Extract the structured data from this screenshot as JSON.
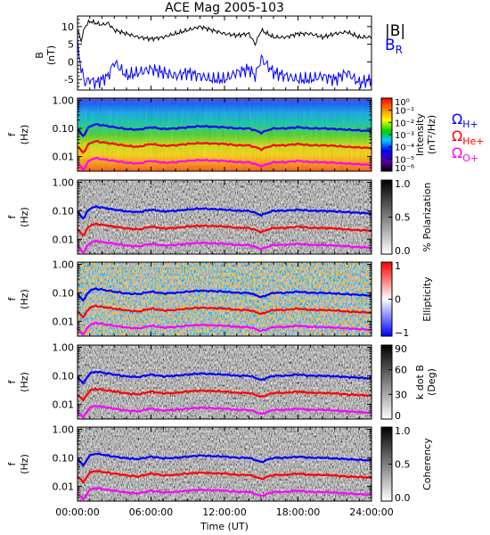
{
  "chart_data": {
    "type": "heatmap",
    "title": "ACE Mag 2005-103",
    "xlabel": "Time (UT)",
    "x_ticks": [
      "00:00:00",
      "06:00:00",
      "12:00:00",
      "18:00:00",
      "24:00:00"
    ],
    "x_range_hours": [
      0,
      24
    ],
    "line_panel": {
      "type": "line",
      "ylabel": "B",
      "yunit": "(nT)",
      "y_ticks": [
        "10",
        "5",
        "0",
        "-5"
      ],
      "ylim": [
        -8,
        13
      ],
      "legend": [
        {
          "name": "|B|",
          "sub": "",
          "color": "#000000"
        },
        {
          "name": "B",
          "sub": "R",
          "color": "#0000ff"
        }
      ],
      "series": [
        {
          "name": "|B|",
          "color": "#000000",
          "x": [
            0,
            0.3,
            0.6,
            1,
            1.5,
            2,
            2.5,
            3,
            4,
            5,
            6,
            7,
            8,
            9,
            10,
            11,
            12,
            13,
            14,
            14.5,
            15,
            16,
            17,
            18,
            19,
            20,
            21,
            22,
            23,
            24
          ],
          "values": [
            9,
            6,
            10,
            11.5,
            11,
            10.5,
            11,
            9,
            8,
            7,
            6.5,
            7,
            8,
            9,
            10,
            9,
            8,
            7.5,
            8,
            5,
            9,
            7,
            7,
            8,
            8,
            7,
            8,
            8.5,
            7,
            7
          ]
        },
        {
          "name": "B_R",
          "color": "#0000ff",
          "x": [
            0,
            0.3,
            0.6,
            1,
            1.5,
            2,
            2.5,
            3,
            4,
            5,
            6,
            7,
            8,
            9,
            10,
            11,
            12,
            13,
            14,
            14.5,
            15,
            16,
            17,
            18,
            19,
            20,
            21,
            22,
            23,
            24
          ],
          "values": [
            5,
            -2,
            -6,
            -5,
            -6,
            -5,
            -4,
            0,
            -4,
            -3,
            -2,
            -3,
            -4,
            -3,
            -4,
            -5,
            -5,
            -3,
            -2,
            -4,
            1,
            -3,
            -4,
            -5,
            -5,
            -4,
            -5,
            -3,
            -6,
            -5
          ]
        }
      ]
    },
    "freq_axis": {
      "ylabel": "f",
      "yunit": "(Hz)",
      "ticks": [
        "1.00",
        "0.10",
        "0.01"
      ],
      "ylim": [
        0.003,
        1.2
      ],
      "scale": "log"
    },
    "gyro_lines": {
      "x": [
        0,
        0.5,
        1,
        1.5,
        2,
        3,
        4,
        5,
        6,
        7,
        8,
        9,
        10,
        11,
        12,
        13,
        14,
        15,
        16,
        17,
        18,
        19,
        20,
        21,
        22,
        23,
        24
      ],
      "H+": {
        "color": "#0000ff",
        "values": [
          0.09,
          0.05,
          0.12,
          0.14,
          0.13,
          0.11,
          0.095,
          0.09,
          0.11,
          0.095,
          0.1,
          0.11,
          0.12,
          0.115,
          0.11,
          0.1,
          0.1,
          0.07,
          0.1,
          0.1,
          0.11,
          0.1,
          0.1,
          0.095,
          0.09,
          0.085,
          0.08
        ]
      },
      "He+": {
        "color": "#ff0000",
        "values": [
          0.022,
          0.013,
          0.03,
          0.035,
          0.032,
          0.028,
          0.024,
          0.022,
          0.028,
          0.024,
          0.025,
          0.028,
          0.03,
          0.029,
          0.028,
          0.025,
          0.025,
          0.018,
          0.025,
          0.025,
          0.028,
          0.025,
          0.025,
          0.024,
          0.022,
          0.021,
          0.02
        ]
      },
      "O+": {
        "color": "#ff00ff",
        "values": [
          0.0056,
          0.0032,
          0.0075,
          0.0088,
          0.008,
          0.007,
          0.006,
          0.0056,
          0.007,
          0.006,
          0.0063,
          0.007,
          0.0075,
          0.0072,
          0.007,
          0.0063,
          0.0063,
          0.0045,
          0.0063,
          0.0063,
          0.007,
          0.0063,
          0.0063,
          0.006,
          0.0056,
          0.0053,
          0.005
        ]
      }
    },
    "gyro_legend": [
      {
        "sym": "Ω",
        "sub": "H+",
        "color": "#0000ff"
      },
      {
        "sym": "Ω",
        "sub": "He+",
        "color": "#ff0000"
      },
      {
        "sym": "Ω",
        "sub": "O+",
        "color": "#ff00ff"
      }
    ],
    "panels": [
      {
        "id": "intensity",
        "colormap": "rainbow",
        "colorbar_label": "Intensity",
        "colorbar_unit": "(nT²/Hz)",
        "colorbar_ticks": [
          "10⁰",
          "10⁻¹",
          "10⁻²",
          "10⁻³",
          "10⁻⁴",
          "10⁻⁵",
          "10⁻⁶"
        ],
        "crange": [
          -6,
          0
        ]
      },
      {
        "id": "polarization",
        "colormap": "gray",
        "colorbar_label": "% Polarization",
        "colorbar_unit": "",
        "colorbar_ticks": [
          "1.0",
          "0.5",
          "0.0"
        ],
        "crange": [
          0,
          1
        ]
      },
      {
        "id": "ellipticity",
        "colormap": "bwr",
        "colorbar_label": "Ellipticity",
        "colorbar_unit": "",
        "colorbar_ticks": [
          "1",
          "0",
          "−1"
        ],
        "crange": [
          -1,
          1
        ]
      },
      {
        "id": "kdotb",
        "colormap": "gray",
        "colorbar_label": "k dot B",
        "colorbar_unit": "(Deg)",
        "colorbar_ticks": [
          "90",
          "60",
          "30",
          "0"
        ],
        "crange": [
          0,
          90
        ]
      },
      {
        "id": "coherency",
        "colormap": "gray",
        "colorbar_label": "Coherency",
        "colorbar_unit": "",
        "colorbar_ticks": [
          "1.0",
          "0.5",
          "0.0"
        ],
        "crange": [
          0,
          1
        ]
      }
    ]
  }
}
